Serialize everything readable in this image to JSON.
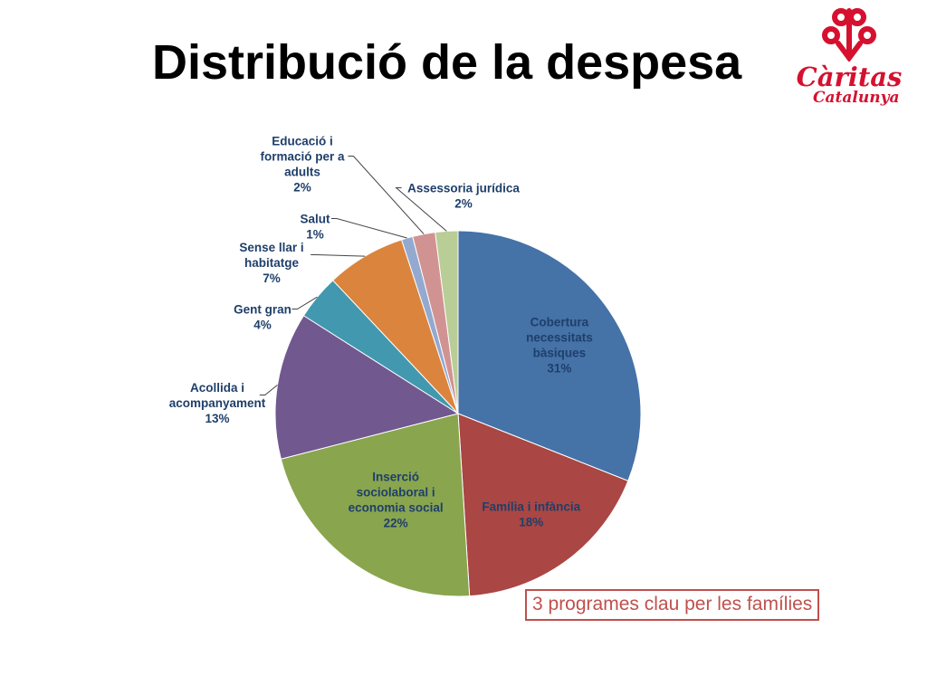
{
  "slide": {
    "title": "Distribució de la despesa",
    "callout": "3 programes clau per les famílies"
  },
  "logo": {
    "name": "Càritas",
    "region": "Catalunya",
    "color": "#d5112f"
  },
  "chart_data": {
    "type": "pie",
    "title": "",
    "slices": [
      {
        "label": [
          "Cobertura",
          "necessitats",
          "bàsiques"
        ],
        "value": 31,
        "value_label": "31%",
        "color": "#4572a7"
      },
      {
        "label": [
          "Família i infància"
        ],
        "value": 18,
        "value_label": "18%",
        "color": "#aa4643"
      },
      {
        "label": [
          "Inserció",
          "sociolaboral i",
          "economia social"
        ],
        "value": 22,
        "value_label": "22%",
        "color": "#89a54e"
      },
      {
        "label": [
          "Acollida i",
          "acompanyament"
        ],
        "value": 13,
        "value_label": "13%",
        "color": "#71588f"
      },
      {
        "label": [
          "Gent gran"
        ],
        "value": 4,
        "value_label": "4%",
        "color": "#4198af"
      },
      {
        "label": [
          "Sense llar i",
          "habitatge"
        ],
        "value": 7,
        "value_label": "7%",
        "color": "#db843d"
      },
      {
        "label": [
          "Salut"
        ],
        "value": 1,
        "value_label": "1%",
        "color": "#93a9cf"
      },
      {
        "label": [
          "Educació i",
          "formació per a",
          "adults"
        ],
        "value": 2,
        "value_label": "2%",
        "color": "#d19392"
      },
      {
        "label": [
          "Assessoria jurídica"
        ],
        "value": 2,
        "value_label": "2%",
        "color": "#b9cd96"
      }
    ],
    "label_color": "#1f3f6b",
    "start": "12 o'clock",
    "direction": "clockwise"
  }
}
